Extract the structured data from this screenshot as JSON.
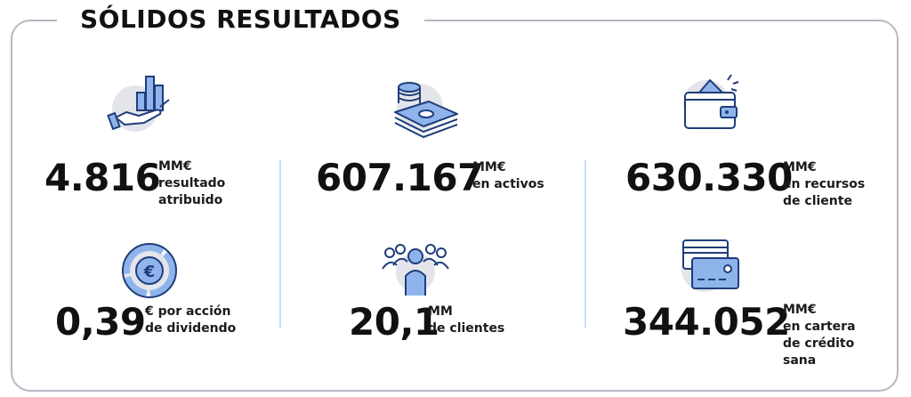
{
  "title": "SÓLIDOS RESULTADOS",
  "stats": {
    "resultado": {
      "value": "4.816",
      "unit": "MM€",
      "lines": [
        "resultado",
        "atribuido"
      ],
      "icon": "hand-growth-chart-icon"
    },
    "dividendo": {
      "value": "0,39",
      "unit": "",
      "lines": [
        "€ por acción",
        "de dividendo"
      ],
      "icon": "euro-pie-chart-icon"
    },
    "activos": {
      "value": "607.167",
      "unit": "MM€",
      "lines": [
        "en activos"
      ],
      "icon": "money-stack-icon"
    },
    "clientes": {
      "value": "20,1",
      "unit": "MM",
      "lines": [
        "de clientes"
      ],
      "icon": "people-group-icon"
    },
    "recursos": {
      "value": "630.330",
      "unit": "MM€",
      "lines": [
        "en recursos",
        "de cliente"
      ],
      "icon": "wallet-icon"
    },
    "cartera": {
      "value": "344.052",
      "unit": "MM€",
      "lines": [
        "en cartera",
        "de crédito",
        "sana"
      ],
      "icon": "credit-cards-icon"
    }
  },
  "colors": {
    "icon_stroke": "#1f3d7a",
    "icon_fill": "#8fb4ec",
    "icon_bg": "#e3e5ea",
    "frame": "#b4b9c2",
    "divider": "#c9dff0"
  }
}
